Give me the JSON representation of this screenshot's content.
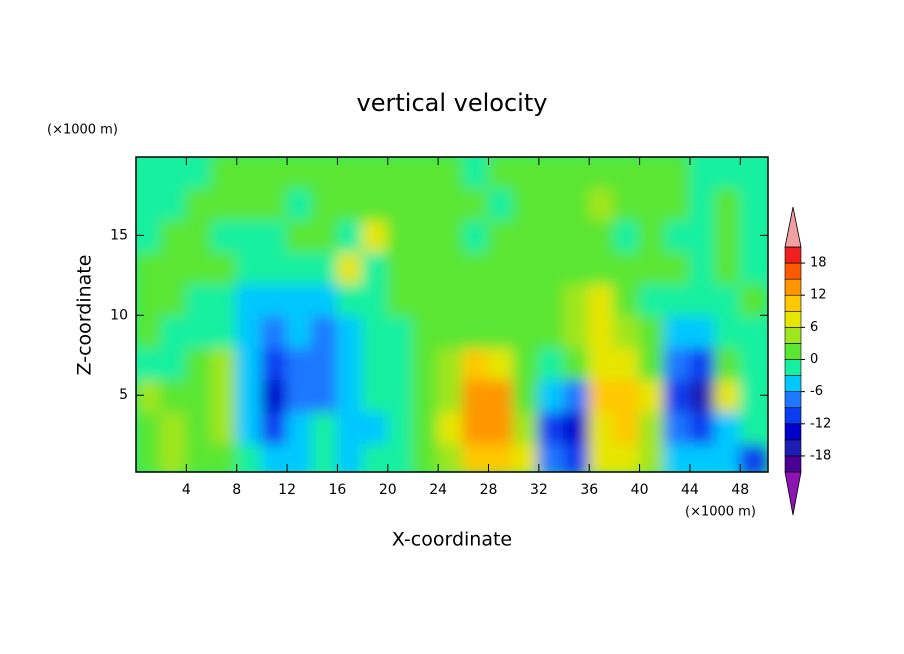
{
  "chart_data": {
    "type": "contour",
    "title": "vertical velocity",
    "x_label": "X-coordinate",
    "y_label": "Z-coordinate",
    "x_unit": "(×1000 m)",
    "y_unit": "(×1000 m)",
    "x": [
      1,
      3,
      5,
      7,
      9,
      11,
      13,
      15,
      17,
      19,
      21,
      23,
      25,
      27,
      29,
      31,
      33,
      35,
      37,
      39,
      41,
      43,
      45,
      47,
      49
    ],
    "y": [
      1,
      3,
      5,
      7,
      9,
      11,
      13,
      15,
      17,
      19
    ],
    "z": [
      [
        2,
        4,
        2,
        0,
        -3,
        -6,
        -4,
        -3,
        -5,
        -2,
        -1,
        0,
        3,
        9,
        11,
        6,
        -8,
        -12,
        6,
        8,
        4,
        -5,
        -6,
        -4,
        -10
      ],
      [
        1,
        4,
        2,
        3,
        -4,
        -12,
        -6,
        -3,
        -4,
        -5,
        -3,
        2,
        6,
        12,
        12,
        3,
        -12,
        -14,
        8,
        10,
        5,
        -8,
        -12,
        -6,
        -3
      ],
      [
        3,
        2,
        0,
        4,
        -6,
        -15,
        -8,
        -7,
        -5,
        -3,
        -3,
        1,
        5,
        13,
        12,
        2,
        -6,
        -8,
        9,
        10,
        6,
        -10,
        -16,
        8,
        -2
      ],
      [
        -2,
        -3,
        0,
        3,
        -6,
        -11,
        -8,
        -8,
        -6,
        -3,
        -2,
        0,
        4,
        9,
        8,
        1,
        -2,
        0,
        8,
        7,
        2,
        -8,
        -12,
        2,
        -3
      ],
      [
        0,
        -2,
        -3,
        -2,
        -4,
        -7,
        -6,
        -9,
        -5,
        -2,
        -1,
        0,
        1,
        2,
        2,
        0,
        0,
        3,
        8,
        5,
        0,
        -5,
        -4,
        -3,
        -1
      ],
      [
        1,
        0,
        -1,
        -3,
        -4,
        -5,
        -6,
        -5,
        -3,
        -1,
        0,
        1,
        1,
        0,
        0,
        0,
        1,
        5,
        6,
        2,
        -1,
        -2,
        -2,
        -1,
        0
      ],
      [
        0,
        1,
        1,
        0,
        -2,
        -3,
        -3,
        -1,
        6,
        -2,
        1,
        2,
        1,
        1,
        1,
        2,
        1,
        2,
        1,
        1,
        0,
        0,
        -1,
        0,
        -1
      ],
      [
        -1,
        1,
        0,
        -2,
        -2,
        -1,
        0,
        1,
        -1,
        6,
        1,
        1,
        0,
        -1,
        1,
        1,
        0,
        1,
        2,
        -1,
        0,
        -1,
        -1,
        1,
        -1
      ],
      [
        -1,
        -1,
        0,
        1,
        1,
        0,
        -1,
        1,
        2,
        1,
        0,
        2,
        1,
        1,
        -1,
        1,
        0,
        2,
        3,
        1,
        0,
        1,
        -1,
        0,
        -1
      ],
      [
        -1,
        -1,
        -1,
        0,
        1,
        1,
        1,
        0,
        1,
        0,
        1,
        1,
        0,
        -1,
        0,
        1,
        1,
        0,
        1,
        1,
        1,
        0,
        -1,
        -1,
        -1
      ]
    ],
    "xlim": [
      0,
      50.2
    ],
    "ylim": [
      0.2,
      19.9
    ],
    "xticks": [
      4,
      8,
      12,
      16,
      20,
      24,
      28,
      32,
      36,
      40,
      44,
      48
    ],
    "yticks": [
      5,
      10,
      15
    ],
    "levels": [
      -21,
      -18,
      -15,
      -12,
      -9,
      -6,
      -3,
      0,
      3,
      6,
      9,
      12,
      15,
      18,
      21
    ],
    "colors": [
      "#8c14b4",
      "#4b0096",
      "#1e1eb4",
      "#0000cd",
      "#0a3cf0",
      "#1e78ff",
      "#00c8ff",
      "#14f0a0",
      "#5ae632",
      "#a0e61e",
      "#e6e600",
      "#ffc800",
      "#ff9600",
      "#ff5a00",
      "#f01e1e",
      "#f0a0a0"
    ],
    "colorbar_ticks": [
      -18,
      -12,
      -6,
      0,
      6,
      12,
      18
    ]
  }
}
